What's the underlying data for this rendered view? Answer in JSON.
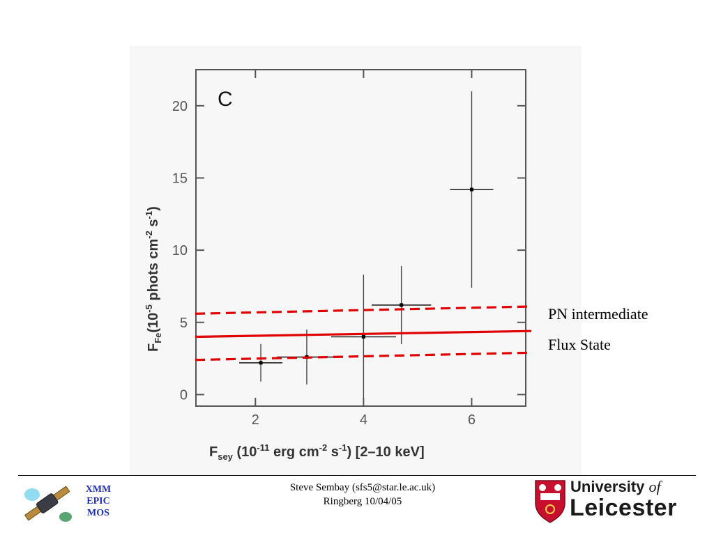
{
  "chart_data": {
    "type": "scatter",
    "panel_label": "C",
    "xlabel": "F_sey (10^-11 erg cm^-2 s^-1) [2–10 keV]",
    "ylabel": "F_Fe (10^-5 phots cm^-2 s^-1)",
    "xlim": [
      0.9,
      7.0
    ],
    "ylim": [
      -0.8,
      22.5
    ],
    "x_ticks": [
      2,
      4,
      6
    ],
    "y_ticks": [
      0,
      5,
      10,
      15,
      20
    ],
    "series": [
      {
        "points": [
          {
            "x": 2.1,
            "y": 2.2,
            "xerr": 0.4,
            "yerr": 1.3
          },
          {
            "x": 2.95,
            "y": 2.6,
            "xerr": 0.55,
            "yerr": 1.9
          },
          {
            "x": 4.0,
            "y": 4.0,
            "xerr": 0.6,
            "yerr": 4.3
          },
          {
            "x": 4.7,
            "y": 6.2,
            "xerr": 0.55,
            "yerr": 2.7
          },
          {
            "x": 6.0,
            "y": 14.2,
            "xerr": 0.4,
            "yerr": 6.8
          }
        ]
      }
    ],
    "overlay_lines": [
      {
        "style": "dashed",
        "color": "#e00000",
        "y_left": 5.6,
        "y_right": 6.1
      },
      {
        "style": "solid",
        "color": "#e00000",
        "y_left": 4.0,
        "y_right": 4.4
      },
      {
        "style": "dashed",
        "color": "#e00000",
        "y_left": 2.4,
        "y_right": 2.9
      }
    ],
    "annotations": [
      "PN intermediate",
      "Flux State"
    ]
  },
  "annotation": {
    "line1": "PN intermediate",
    "line2": "Flux State"
  },
  "footer": {
    "author": "Steve Sembay (sfs5@star.le.ac.uk)",
    "event": "Ringberg 10/04/05"
  },
  "xmm": {
    "line1": "XMM",
    "line2": "EPIC",
    "line3": "MOS"
  },
  "university": {
    "line1_main": "University",
    "line1_of": "of",
    "line2": "Leicester"
  },
  "colors": {
    "accent_red": "#e00000",
    "xmm_blue": "#1a2cb8",
    "logo_red": "#c8102e"
  }
}
